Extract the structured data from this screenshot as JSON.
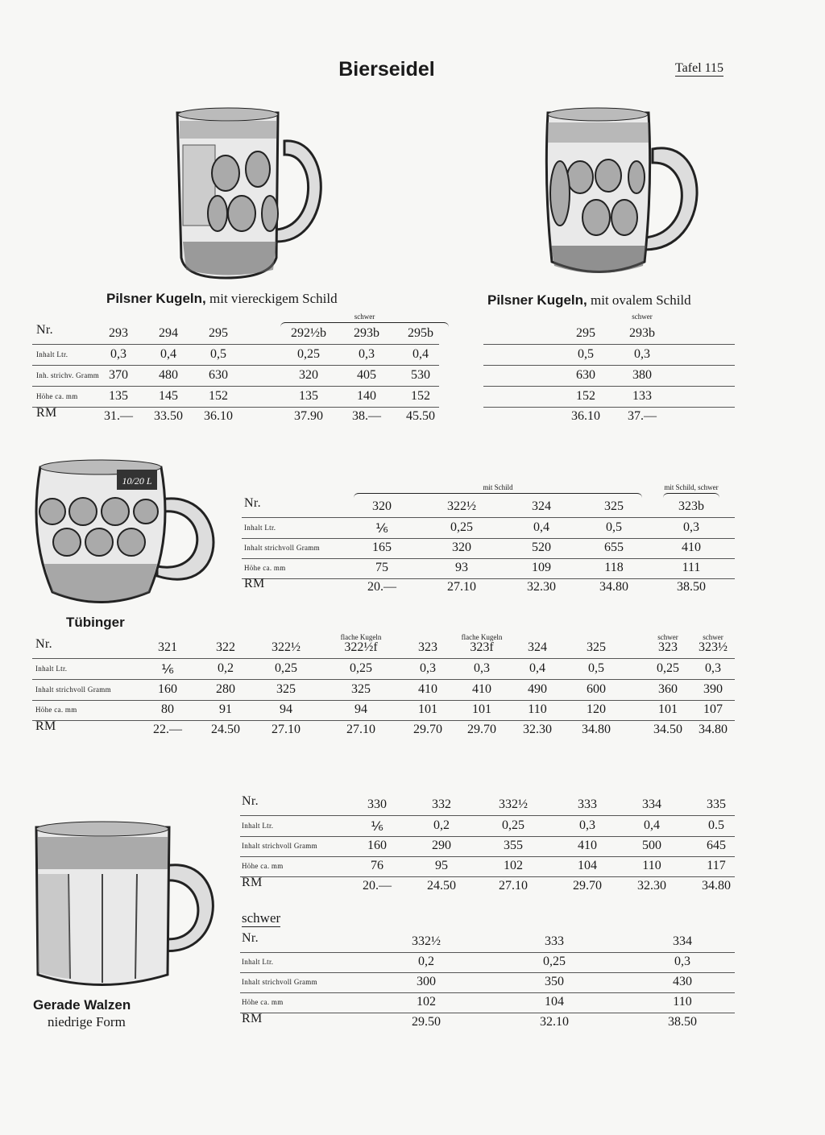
{
  "header": {
    "title": "Bierseidel",
    "plate": "Tafel 115"
  },
  "mugs": {
    "m1": {
      "name": "Pilsner Kugeln,",
      "desc": "mit viereckigem Schild"
    },
    "m2": {
      "name": "Pilsner Kugeln,",
      "desc": "mit ovalem Schild"
    },
    "m3": {
      "name": "Tübinger",
      "shield_text": "10/20 L"
    },
    "m4": {
      "name": "Gerade Walzen",
      "desc": "niedrige Form"
    }
  },
  "tables": [
    {
      "id": "t1",
      "groups": [
        {
          "label": "schwer",
          "from": 3,
          "to": 5
        }
      ],
      "subs": [],
      "rows": [
        {
          "label": "Nr.",
          "values": [
            "293",
            "294",
            "295",
            "292½b",
            "293b",
            "295b"
          ]
        },
        {
          "label": "Inhalt Ltr.",
          "values": [
            "0,3",
            "0,4",
            "0,5",
            "0,25",
            "0,3",
            "0,4"
          ]
        },
        {
          "label": "Inh. strichv. Gramm",
          "values": [
            "370",
            "480",
            "630",
            "320",
            "405",
            "530"
          ]
        },
        {
          "label": "Höhe ca. mm",
          "values": [
            "135",
            "145",
            "152",
            "135",
            "140",
            "152"
          ]
        },
        {
          "label": "RM",
          "values": [
            "31.—",
            "33.50",
            "36.10",
            "37.90",
            "38.—",
            "45.50"
          ]
        }
      ]
    },
    {
      "id": "t2",
      "groups": [
        {
          "label": "schwer",
          "from": 1,
          "to": 1
        }
      ],
      "subs": [],
      "rows": [
        {
          "label": "",
          "values": [
            "295",
            "293b"
          ]
        },
        {
          "label": "",
          "values": [
            "0,5",
            "0,3"
          ]
        },
        {
          "label": "",
          "values": [
            "630",
            "380"
          ]
        },
        {
          "label": "",
          "values": [
            "152",
            "133"
          ]
        },
        {
          "label": "",
          "values": [
            "36.10",
            "37.—"
          ]
        }
      ]
    },
    {
      "id": "t3",
      "groups": [
        {
          "label": "mit Schild",
          "from": 0,
          "to": 3
        },
        {
          "label": "mit Schild, schwer",
          "from": 4,
          "to": 4
        }
      ],
      "subs": [],
      "rows": [
        {
          "label": "Nr.",
          "values": [
            "320",
            "322½",
            "324",
            "325",
            "323b"
          ]
        },
        {
          "label": "Inhalt Ltr.",
          "values": [
            "⅙",
            "0,25",
            "0,4",
            "0,5",
            "0,3"
          ]
        },
        {
          "label": "Inhalt strichvoll Gramm",
          "values": [
            "165",
            "320",
            "520",
            "655",
            "410"
          ]
        },
        {
          "label": "Höhe ca. mm",
          "values": [
            "75",
            "93",
            "109",
            "118",
            "111"
          ]
        },
        {
          "label": "RM",
          "values": [
            "20.—",
            "27.10",
            "32.30",
            "34.80",
            "38.50"
          ]
        }
      ]
    },
    {
      "id": "t4",
      "groups": [],
      "subs": [
        {
          "label": "flache Kugeln",
          "col": 3
        },
        {
          "label": "flache Kugeln",
          "col": 5
        },
        {
          "label": "schwer",
          "col": 8
        },
        {
          "label": "schwer",
          "col": 9
        }
      ],
      "rows": [
        {
          "label": "Nr.",
          "values": [
            "321",
            "322",
            "322½",
            "322½f",
            "323",
            "323f",
            "324",
            "325",
            "323",
            "323½"
          ]
        },
        {
          "label": "Inhalt Ltr.",
          "values": [
            "⅙",
            "0,2",
            "0,25",
            "0,25",
            "0,3",
            "0,3",
            "0,4",
            "0,5",
            "0,25",
            "0,3"
          ]
        },
        {
          "label": "Inhalt strichvoll Gramm",
          "values": [
            "160",
            "280",
            "325",
            "325",
            "410",
            "410",
            "490",
            "600",
            "360",
            "390"
          ]
        },
        {
          "label": "Höhe ca. mm",
          "values": [
            "80",
            "91",
            "94",
            "94",
            "101",
            "101",
            "110",
            "120",
            "101",
            "107"
          ]
        },
        {
          "label": "RM",
          "values": [
            "22.—",
            "24.50",
            "27.10",
            "27.10",
            "29.70",
            "29.70",
            "32.30",
            "34.80",
            "34.50",
            "34.80"
          ]
        }
      ]
    },
    {
      "id": "t5",
      "groups": [],
      "subs": [],
      "rows": [
        {
          "label": "Nr.",
          "values": [
            "330",
            "332",
            "332½",
            "333",
            "334",
            "335"
          ]
        },
        {
          "label": "Inhalt Ltr.",
          "values": [
            "⅙",
            "0,2",
            "0,25",
            "0,3",
            "0,4",
            "0.5"
          ]
        },
        {
          "label": "Inhalt strichvoll Gramm",
          "values": [
            "160",
            "290",
            "355",
            "410",
            "500",
            "645"
          ]
        },
        {
          "label": "Höhe ca. mm",
          "values": [
            "76",
            "95",
            "102",
            "104",
            "110",
            "117"
          ]
        },
        {
          "label": "RM",
          "values": [
            "20.—",
            "24.50",
            "27.10",
            "29.70",
            "32.30",
            "34.80"
          ]
        }
      ]
    },
    {
      "id": "t6",
      "title": "schwer",
      "groups": [],
      "subs": [],
      "rows": [
        {
          "label": "Nr.",
          "values": [
            "332½",
            "333",
            "334"
          ]
        },
        {
          "label": "Inhalt Ltr.",
          "values": [
            "0,2",
            "0,25",
            "0,3"
          ]
        },
        {
          "label": "Inhalt strichvoll Gramm",
          "values": [
            "300",
            "350",
            "430"
          ]
        },
        {
          "label": "Höhe ca. mm",
          "values": [
            "102",
            "104",
            "110"
          ]
        },
        {
          "label": "RM",
          "values": [
            "29.50",
            "32.10",
            "38.50"
          ]
        }
      ]
    }
  ]
}
